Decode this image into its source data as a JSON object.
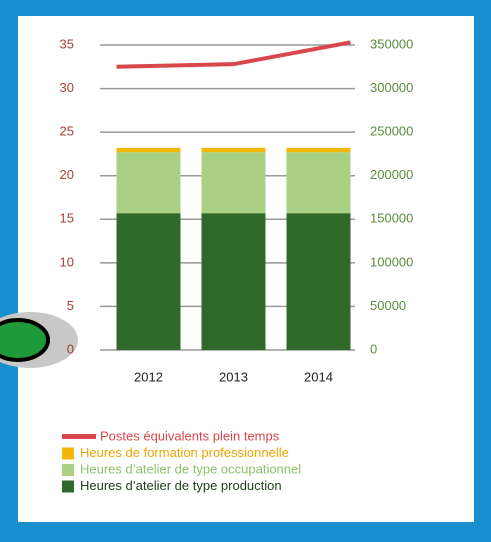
{
  "chart_data": {
    "type": "bar",
    "stacked": true,
    "categories": [
      "2012",
      "2013",
      "2014"
    ],
    "series": [
      {
        "name": "Postes équivalents plein temps",
        "type": "line",
        "axis": "y",
        "color": "#d8474c",
        "values": [
          32.5,
          32.8,
          35.3
        ]
      },
      {
        "name": "Heures de formation professionnelle",
        "type": "bar",
        "axis": "y2",
        "color": "#f2b705",
        "values": [
          5000,
          5000,
          5000
        ]
      },
      {
        "name": "Heures d’atelier de type occupationnel",
        "type": "bar",
        "axis": "y2",
        "color": "#a9d083",
        "values": [
          70000,
          70000,
          70000
        ]
      },
      {
        "name": "Heures d’atelier de type production",
        "type": "bar",
        "axis": "y2",
        "color": "#2f6a2b",
        "values": [
          157000,
          157000,
          157000
        ]
      }
    ],
    "ylim": [
      0,
      35
    ],
    "yticks": [
      0,
      5,
      10,
      15,
      20,
      25,
      30,
      35
    ],
    "y2lim": [
      0,
      350000
    ],
    "y2ticks": [
      0,
      50000,
      100000,
      150000,
      200000,
      250000,
      300000,
      350000
    ],
    "grid": true
  }
}
